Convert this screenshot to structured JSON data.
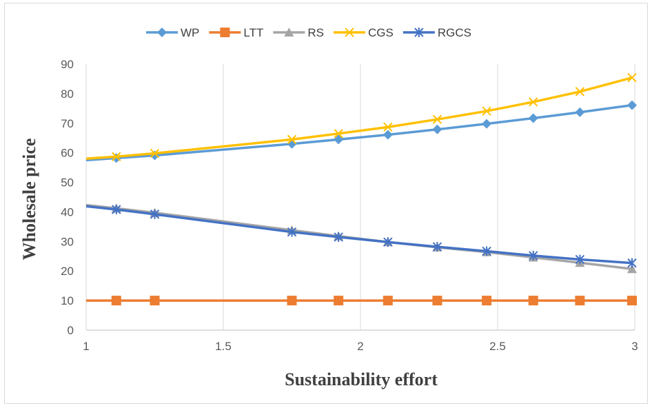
{
  "chart_data": {
    "type": "line",
    "xlabel": "Sustainability effort",
    "ylabel": "Wholesale price",
    "xlim": [
      1,
      3
    ],
    "ylim": [
      0,
      90
    ],
    "x_ticks": [
      "1",
      "1.5",
      "2",
      "2.5",
      "3"
    ],
    "y_ticks": [
      "0",
      "10",
      "20",
      "30",
      "40",
      "50",
      "60",
      "70",
      "80",
      "90"
    ],
    "grid": "vertical",
    "legend_position": "top",
    "x": [
      1.11,
      1.25,
      1.75,
      1.92,
      2.1,
      2.28,
      2.46,
      2.63,
      2.8,
      2.99
    ],
    "series": [
      {
        "name": "WP",
        "color": "#5b9bd5",
        "marker": "diamond",
        "start": [
          1,
          57.5
        ],
        "values": [
          58.2,
          59.1,
          63.0,
          64.5,
          66.1,
          67.9,
          69.8,
          71.7,
          73.7,
          76.1
        ]
      },
      {
        "name": "LTT",
        "color": "#ed7d31",
        "marker": "square",
        "start": [
          1,
          10
        ],
        "values": [
          10,
          10,
          10,
          10,
          10,
          10,
          10,
          10,
          10,
          10
        ]
      },
      {
        "name": "RS",
        "color": "#a5a5a5",
        "marker": "triangle",
        "start": [
          1,
          42.3
        ],
        "values": [
          41.2,
          39.7,
          33.8,
          31.8,
          29.8,
          28.0,
          26.4,
          24.6,
          22.8,
          20.7
        ]
      },
      {
        "name": "CGS",
        "color": "#ffc000",
        "marker": "x",
        "start": [
          1,
          58
        ],
        "values": [
          58.7,
          59.8,
          64.5,
          66.5,
          68.7,
          71.3,
          74.1,
          77.2,
          80.7,
          85.4
        ]
      },
      {
        "name": "RGCS",
        "color": "#4472c4",
        "marker": "asterisk",
        "start": [
          1,
          41.9
        ],
        "values": [
          40.8,
          39.2,
          33.2,
          31.5,
          29.8,
          28.2,
          26.7,
          25.2,
          23.9,
          22.7
        ]
      }
    ]
  }
}
